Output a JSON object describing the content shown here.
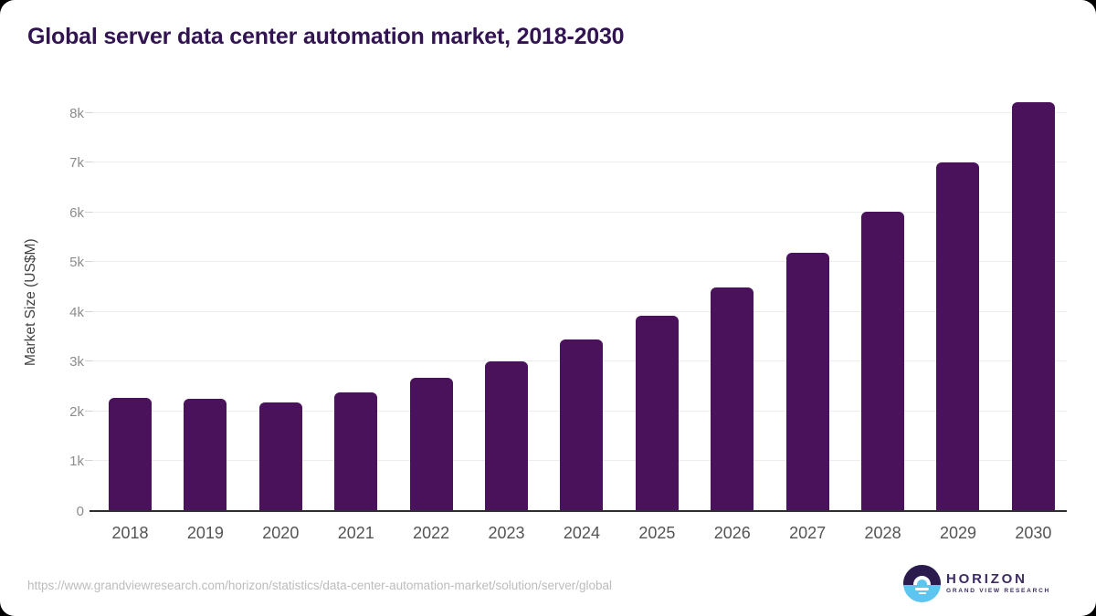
{
  "source_url": "https://www.grandviewresearch.com/horizon/statistics/data-center-automation-market/solution/server/global",
  "logo": {
    "title": "HORIZON",
    "subtitle": "GRAND VIEW RESEARCH"
  },
  "colors": {
    "bar": "#49125b",
    "title_text": "#331453",
    "axis_line": "#2e2e2e",
    "grid_line": "#ededed",
    "y_tick_label": "#8c8c8c",
    "x_tick_label": "#545454",
    "url_text": "#bcbcbc",
    "logo_purple": "#3d2c63",
    "logo_dark_half": "#2b1b4d",
    "logo_blue_half": "#5ec4f0",
    "card_background": "#ffffff",
    "page_background": "#000000"
  },
  "chart_data": {
    "type": "bar",
    "title": "Global server data center automation market, 2018-2030",
    "categories": [
      "2018",
      "2019",
      "2020",
      "2021",
      "2022",
      "2023",
      "2024",
      "2025",
      "2026",
      "2027",
      "2028",
      "2029",
      "2030"
    ],
    "values": [
      2280,
      2260,
      2180,
      2380,
      2670,
      3010,
      3440,
      3920,
      4490,
      5190,
      6020,
      7000,
      8220
    ],
    "xlabel": "",
    "ylabel": "Market Size (US$M)",
    "ylim": [
      0,
      8400
    ],
    "yticks": [
      {
        "label": "0",
        "value": 0
      },
      {
        "label": "1k",
        "value": 1000
      },
      {
        "label": "2k",
        "value": 2000
      },
      {
        "label": "3k",
        "value": 3000
      },
      {
        "label": "4k",
        "value": 4000
      },
      {
        "label": "5k",
        "value": 5000
      },
      {
        "label": "6k",
        "value": 6000
      },
      {
        "label": "7k",
        "value": 7000
      },
      {
        "label": "8k",
        "value": 8000
      }
    ],
    "grid": true,
    "legend": false,
    "bar_color": "#49125b"
  }
}
